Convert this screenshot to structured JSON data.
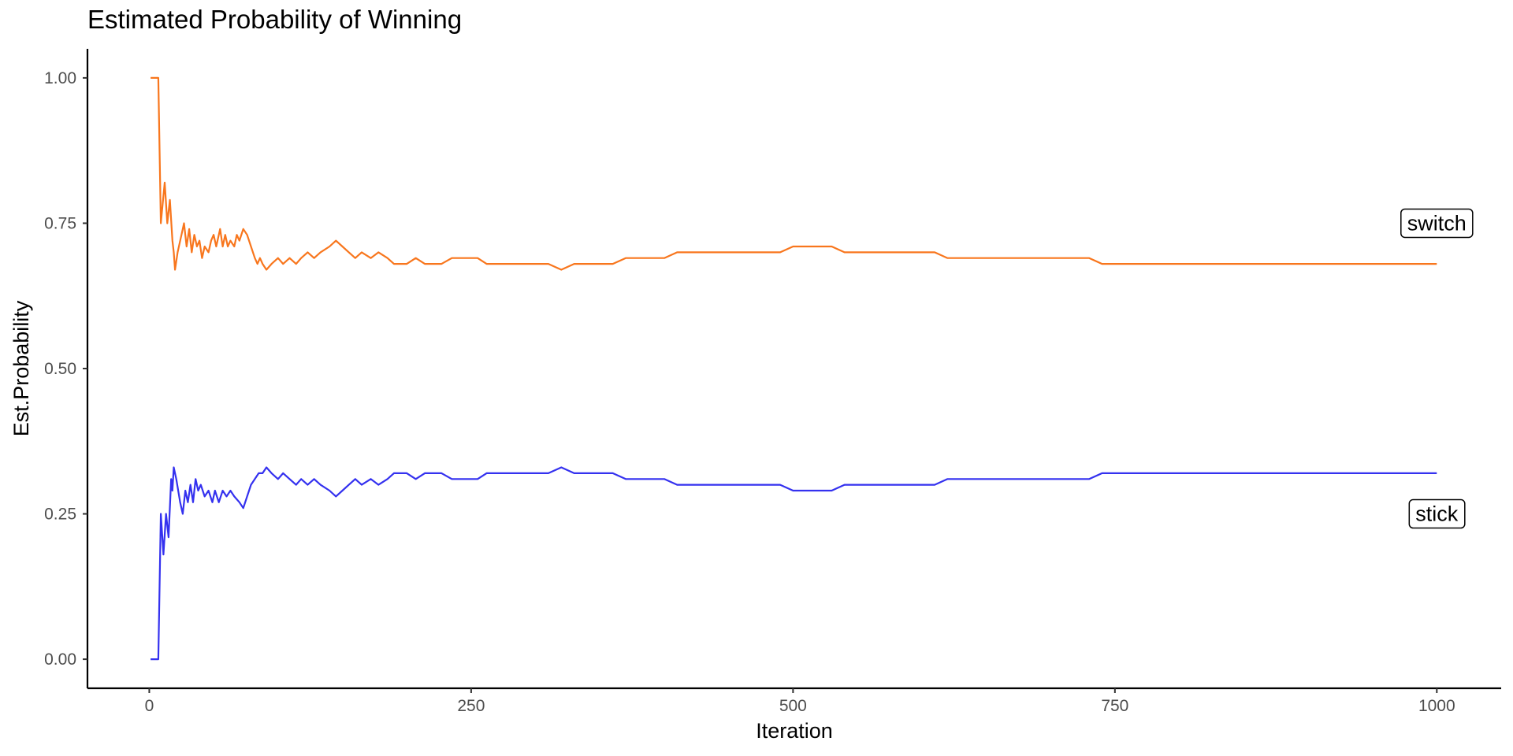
{
  "chart_data": {
    "type": "line",
    "title": "Estimated Probability of Winning",
    "xlabel": "Iteration",
    "ylabel": "Est.Probability",
    "xlim": [
      -48,
      1050
    ],
    "ylim": [
      -0.05,
      1.05
    ],
    "x_ticks": [
      0,
      250,
      500,
      750,
      1000
    ],
    "y_ticks": [
      0.0,
      0.25,
      0.5,
      0.75,
      1.0
    ],
    "x_tick_labels": [
      "0",
      "250",
      "500",
      "750",
      "1000"
    ],
    "y_tick_labels": [
      "0.00",
      "0.25",
      "0.50",
      "0.75",
      "1.00"
    ],
    "grid": false,
    "series": [
      {
        "name": "switch",
        "color": "#f8761d",
        "label_at": [
          1000,
          0.75
        ],
        "points": [
          [
            1,
            1.0
          ],
          [
            7,
            1.0
          ],
          [
            9,
            0.75
          ],
          [
            12,
            0.82
          ],
          [
            14,
            0.75
          ],
          [
            16,
            0.79
          ],
          [
            18,
            0.72
          ],
          [
            19,
            0.7
          ],
          [
            20,
            0.67
          ],
          [
            22,
            0.7
          ],
          [
            25,
            0.73
          ],
          [
            27,
            0.75
          ],
          [
            29,
            0.71
          ],
          [
            31,
            0.74
          ],
          [
            33,
            0.7
          ],
          [
            35,
            0.73
          ],
          [
            37,
            0.71
          ],
          [
            39,
            0.72
          ],
          [
            41,
            0.69
          ],
          [
            43,
            0.71
          ],
          [
            46,
            0.7
          ],
          [
            48,
            0.72
          ],
          [
            50,
            0.73
          ],
          [
            52,
            0.71
          ],
          [
            55,
            0.74
          ],
          [
            57,
            0.71
          ],
          [
            59,
            0.73
          ],
          [
            61,
            0.71
          ],
          [
            63,
            0.72
          ],
          [
            66,
            0.71
          ],
          [
            68,
            0.73
          ],
          [
            70,
            0.72
          ],
          [
            73,
            0.74
          ],
          [
            76,
            0.73
          ],
          [
            79,
            0.71
          ],
          [
            82,
            0.69
          ],
          [
            84,
            0.68
          ],
          [
            86,
            0.69
          ],
          [
            88,
            0.68
          ],
          [
            91,
            0.67
          ],
          [
            95,
            0.68
          ],
          [
            100,
            0.69
          ],
          [
            104,
            0.68
          ],
          [
            109,
            0.69
          ],
          [
            114,
            0.68
          ],
          [
            118,
            0.69
          ],
          [
            123,
            0.7
          ],
          [
            128,
            0.69
          ],
          [
            133,
            0.7
          ],
          [
            140,
            0.71
          ],
          [
            145,
            0.72
          ],
          [
            150,
            0.71
          ],
          [
            155,
            0.7
          ],
          [
            160,
            0.69
          ],
          [
            165,
            0.7
          ],
          [
            172,
            0.69
          ],
          [
            178,
            0.7
          ],
          [
            185,
            0.69
          ],
          [
            190,
            0.68
          ],
          [
            200,
            0.68
          ],
          [
            207,
            0.69
          ],
          [
            214,
            0.68
          ],
          [
            220,
            0.68
          ],
          [
            227,
            0.68
          ],
          [
            235,
            0.69
          ],
          [
            245,
            0.69
          ],
          [
            255,
            0.69
          ],
          [
            262,
            0.68
          ],
          [
            270,
            0.68
          ],
          [
            280,
            0.68
          ],
          [
            290,
            0.68
          ],
          [
            300,
            0.68
          ],
          [
            310,
            0.68
          ],
          [
            320,
            0.67
          ],
          [
            330,
            0.68
          ],
          [
            340,
            0.68
          ],
          [
            350,
            0.68
          ],
          [
            360,
            0.68
          ],
          [
            370,
            0.69
          ],
          [
            380,
            0.69
          ],
          [
            390,
            0.69
          ],
          [
            400,
            0.69
          ],
          [
            410,
            0.7
          ],
          [
            420,
            0.7
          ],
          [
            430,
            0.7
          ],
          [
            440,
            0.7
          ],
          [
            450,
            0.7
          ],
          [
            460,
            0.7
          ],
          [
            470,
            0.7
          ],
          [
            480,
            0.7
          ],
          [
            490,
            0.7
          ],
          [
            500,
            0.71
          ],
          [
            510,
            0.71
          ],
          [
            520,
            0.71
          ],
          [
            530,
            0.71
          ],
          [
            540,
            0.7
          ],
          [
            550,
            0.7
          ],
          [
            560,
            0.7
          ],
          [
            570,
            0.7
          ],
          [
            580,
            0.7
          ],
          [
            590,
            0.7
          ],
          [
            600,
            0.7
          ],
          [
            610,
            0.7
          ],
          [
            620,
            0.69
          ],
          [
            630,
            0.69
          ],
          [
            640,
            0.69
          ],
          [
            650,
            0.69
          ],
          [
            660,
            0.69
          ],
          [
            670,
            0.69
          ],
          [
            680,
            0.69
          ],
          [
            690,
            0.69
          ],
          [
            700,
            0.69
          ],
          [
            710,
            0.69
          ],
          [
            720,
            0.69
          ],
          [
            730,
            0.69
          ],
          [
            740,
            0.68
          ],
          [
            750,
            0.68
          ],
          [
            760,
            0.68
          ],
          [
            770,
            0.68
          ],
          [
            780,
            0.68
          ],
          [
            790,
            0.68
          ],
          [
            800,
            0.68
          ],
          [
            810,
            0.68
          ],
          [
            820,
            0.68
          ],
          [
            830,
            0.68
          ],
          [
            840,
            0.68
          ],
          [
            850,
            0.68
          ],
          [
            860,
            0.68
          ],
          [
            870,
            0.68
          ],
          [
            880,
            0.68
          ],
          [
            890,
            0.68
          ],
          [
            900,
            0.68
          ],
          [
            910,
            0.68
          ],
          [
            920,
            0.68
          ],
          [
            930,
            0.68
          ],
          [
            940,
            0.68
          ],
          [
            950,
            0.68
          ],
          [
            960,
            0.68
          ],
          [
            970,
            0.68
          ],
          [
            980,
            0.68
          ],
          [
            990,
            0.68
          ],
          [
            1000,
            0.68
          ]
        ]
      },
      {
        "name": "stick",
        "color": "#3431ef",
        "label_at": [
          1000,
          0.25
        ],
        "points": [
          [
            1,
            0.0
          ],
          [
            7,
            0.0
          ],
          [
            9,
            0.25
          ],
          [
            11,
            0.18
          ],
          [
            13,
            0.25
          ],
          [
            15,
            0.21
          ],
          [
            17,
            0.31
          ],
          [
            18,
            0.29
          ],
          [
            19,
            0.33
          ],
          [
            21,
            0.31
          ],
          [
            24,
            0.27
          ],
          [
            26,
            0.25
          ],
          [
            28,
            0.29
          ],
          [
            30,
            0.27
          ],
          [
            32,
            0.3
          ],
          [
            34,
            0.27
          ],
          [
            36,
            0.31
          ],
          [
            38,
            0.29
          ],
          [
            40,
            0.3
          ],
          [
            43,
            0.28
          ],
          [
            46,
            0.29
          ],
          [
            49,
            0.27
          ],
          [
            51,
            0.29
          ],
          [
            54,
            0.27
          ],
          [
            57,
            0.29
          ],
          [
            60,
            0.28
          ],
          [
            63,
            0.29
          ],
          [
            66,
            0.28
          ],
          [
            70,
            0.27
          ],
          [
            73,
            0.26
          ],
          [
            76,
            0.28
          ],
          [
            79,
            0.3
          ],
          [
            82,
            0.31
          ],
          [
            85,
            0.32
          ],
          [
            88,
            0.32
          ],
          [
            91,
            0.33
          ],
          [
            95,
            0.32
          ],
          [
            100,
            0.31
          ],
          [
            104,
            0.32
          ],
          [
            109,
            0.31
          ],
          [
            114,
            0.3
          ],
          [
            118,
            0.31
          ],
          [
            123,
            0.3
          ],
          [
            128,
            0.31
          ],
          [
            133,
            0.3
          ],
          [
            140,
            0.29
          ],
          [
            145,
            0.28
          ],
          [
            150,
            0.29
          ],
          [
            155,
            0.3
          ],
          [
            160,
            0.31
          ],
          [
            165,
            0.3
          ],
          [
            172,
            0.31
          ],
          [
            178,
            0.3
          ],
          [
            185,
            0.31
          ],
          [
            190,
            0.32
          ],
          [
            200,
            0.32
          ],
          [
            207,
            0.31
          ],
          [
            214,
            0.32
          ],
          [
            220,
            0.32
          ],
          [
            227,
            0.32
          ],
          [
            235,
            0.31
          ],
          [
            245,
            0.31
          ],
          [
            255,
            0.31
          ],
          [
            262,
            0.32
          ],
          [
            270,
            0.32
          ],
          [
            280,
            0.32
          ],
          [
            290,
            0.32
          ],
          [
            300,
            0.32
          ],
          [
            310,
            0.32
          ],
          [
            320,
            0.33
          ],
          [
            330,
            0.32
          ],
          [
            340,
            0.32
          ],
          [
            350,
            0.32
          ],
          [
            360,
            0.32
          ],
          [
            370,
            0.31
          ],
          [
            380,
            0.31
          ],
          [
            390,
            0.31
          ],
          [
            400,
            0.31
          ],
          [
            410,
            0.3
          ],
          [
            420,
            0.3
          ],
          [
            430,
            0.3
          ],
          [
            440,
            0.3
          ],
          [
            450,
            0.3
          ],
          [
            460,
            0.3
          ],
          [
            470,
            0.3
          ],
          [
            480,
            0.3
          ],
          [
            490,
            0.3
          ],
          [
            500,
            0.29
          ],
          [
            510,
            0.29
          ],
          [
            520,
            0.29
          ],
          [
            530,
            0.29
          ],
          [
            540,
            0.3
          ],
          [
            550,
            0.3
          ],
          [
            560,
            0.3
          ],
          [
            570,
            0.3
          ],
          [
            580,
            0.3
          ],
          [
            590,
            0.3
          ],
          [
            600,
            0.3
          ],
          [
            610,
            0.3
          ],
          [
            620,
            0.31
          ],
          [
            630,
            0.31
          ],
          [
            640,
            0.31
          ],
          [
            650,
            0.31
          ],
          [
            660,
            0.31
          ],
          [
            670,
            0.31
          ],
          [
            680,
            0.31
          ],
          [
            690,
            0.31
          ],
          [
            700,
            0.31
          ],
          [
            710,
            0.31
          ],
          [
            720,
            0.31
          ],
          [
            730,
            0.31
          ],
          [
            740,
            0.32
          ],
          [
            750,
            0.32
          ],
          [
            760,
            0.32
          ],
          [
            770,
            0.32
          ],
          [
            780,
            0.32
          ],
          [
            790,
            0.32
          ],
          [
            800,
            0.32
          ],
          [
            810,
            0.32
          ],
          [
            820,
            0.32
          ],
          [
            830,
            0.32
          ],
          [
            840,
            0.32
          ],
          [
            850,
            0.32
          ],
          [
            860,
            0.32
          ],
          [
            870,
            0.32
          ],
          [
            880,
            0.32
          ],
          [
            890,
            0.32
          ],
          [
            900,
            0.32
          ],
          [
            910,
            0.32
          ],
          [
            920,
            0.32
          ],
          [
            930,
            0.32
          ],
          [
            940,
            0.32
          ],
          [
            950,
            0.32
          ],
          [
            960,
            0.32
          ],
          [
            970,
            0.32
          ],
          [
            980,
            0.32
          ],
          [
            990,
            0.32
          ],
          [
            1000,
            0.32
          ]
        ]
      }
    ]
  }
}
